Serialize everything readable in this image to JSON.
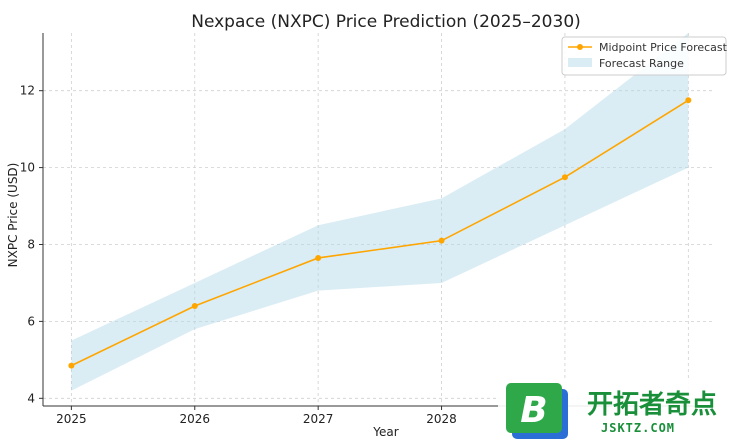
{
  "chart_data": {
    "type": "line",
    "title": "Nexpace (NXPC) Price Prediction (2025–2030)",
    "xlabel": "Year",
    "ylabel": "NXPC Price (USD)",
    "x": [
      2025,
      2026,
      2027,
      2028,
      2029,
      2030
    ],
    "xticks": [
      "2025",
      "2026",
      "2027",
      "2028"
    ],
    "yticks": [
      "4",
      "6",
      "8",
      "10",
      "12"
    ],
    "ylim": [
      3.8,
      13.5
    ],
    "xlim": [
      2024.77,
      2030.2
    ],
    "grid": true,
    "legend_position": "top-right",
    "series": [
      {
        "name": "Midpoint Price Forecast",
        "values": [
          4.85,
          6.4,
          7.65,
          8.1,
          9.75,
          11.75
        ],
        "color": "#FFA500"
      }
    ],
    "band": {
      "name": "Forecast Range",
      "lower": [
        4.2,
        5.8,
        6.8,
        7.0,
        8.5,
        10.0
      ],
      "upper": [
        5.5,
        7.0,
        8.5,
        9.2,
        11.0,
        13.5
      ],
      "color": "#ADD8E6"
    }
  },
  "watermark": {
    "logo_letter": "B",
    "text_cn": "开拓者奇点",
    "text_en": "JSKTZ.COM"
  }
}
